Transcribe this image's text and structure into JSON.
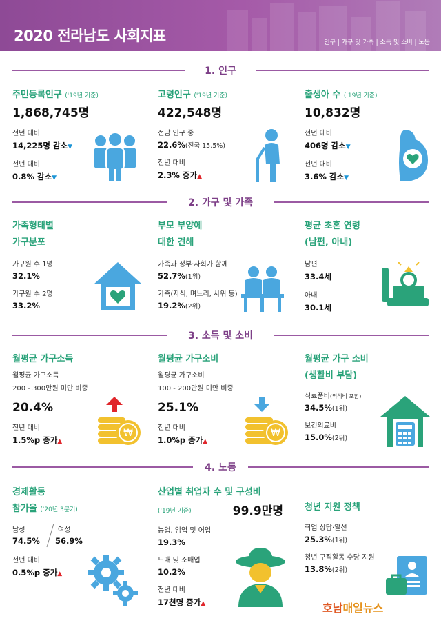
{
  "header": {
    "title": "2020 전라남도 사회지표",
    "nav": "인구 | 가구 및 가족 | 소득 및 소비 | 노동"
  },
  "sections": {
    "s1": "1. 인구",
    "s2": "2. 가구 및 가족",
    "s3": "3. 소득 및 소비",
    "s4": "4. 노동"
  },
  "population": {
    "resident": {
      "title": "주민등록인구",
      "note": "('19년 기준)",
      "value": "1,868,745명",
      "l1": "전년 대비",
      "v1": "14,225명 감소",
      "l2": "전년 대비",
      "v2": "0.8% 감소"
    },
    "elderly": {
      "title": "고령인구",
      "note": "('19년 기준)",
      "value": "422,548명",
      "l1": "전남 인구 중",
      "v1": "22.6%",
      "v1note": "(전국 15.5%)",
      "l2": "전년 대비",
      "v2": "2.3% 증가"
    },
    "births": {
      "title": "출생아 수",
      "note": "('19년 기준)",
      "value": "10,832명",
      "l1": "전년 대비",
      "v1": "406명 감소",
      "l2": "전년 대비",
      "v2": "3.6% 감소"
    }
  },
  "family": {
    "type": {
      "title1": "가족형태별",
      "title2": "가구분포",
      "l1": "가구원 수 1명",
      "v1": "32.1%",
      "l2": "가구원 수 2명",
      "v2": "33.2%"
    },
    "parents": {
      "title1": "부모 부양에",
      "title2": "대한 견해",
      "l1": "가족과 정부·사회가 함께",
      "v1": "52.7%",
      "v1note": "(1위)",
      "l2": "가족(자식, 며느리, 사위 등)",
      "v2": "19.2%",
      "v2note": "(2위)"
    },
    "marriage": {
      "title1": "평균 초혼 연령",
      "title2": "(남편, 아내)",
      "l1": "남편",
      "v1": "33.4세",
      "l2": "아내",
      "v2": "30.1세"
    }
  },
  "income": {
    "hh_income": {
      "title": "월평균 가구소득",
      "sub1": "월평균 가구소득",
      "sub2": "200 - 300만원 미만 비중",
      "value": "20.4%",
      "l1": "전년 대비",
      "v1": "1.5%p 증가"
    },
    "hh_spend": {
      "title": "월평균 가구소비",
      "sub1": "월평균 가구소비",
      "sub2": "100 - 200만원 미만 비중",
      "value": "25.1%",
      "l1": "전년 대비",
      "v1": "1.0%p 증가"
    },
    "living": {
      "title1": "월평균 가구 소비",
      "title2": "(생활비 부담)",
      "l1": "식료품비",
      "l1note": "(외식비 포함)",
      "v1": "34.5%",
      "v1note": "(1위)",
      "l2": "보건의료비",
      "v2": "15.0%",
      "v2note": "(2위)"
    }
  },
  "labor": {
    "econ": {
      "title1": "경제활동",
      "title2": "참가율",
      "note": "('20년 3분기)",
      "l_m": "남성",
      "v_m": "74.5%",
      "l_f": "여성",
      "v_f": "56.9%",
      "l1": "전년 대비",
      "v1": "0.5%p 증가"
    },
    "industry": {
      "title": "산업별 취업자 수 및 구성비",
      "note": "('19년 기준)",
      "value": "99.9만명",
      "l1": "농업, 임업 및 어업",
      "v1": "19.3%",
      "l2": "도매 및 소매업",
      "v2": "10.2%",
      "l3": "전년 대비",
      "v3": "17천명 증가"
    },
    "youth": {
      "title": "청년 지원 정책",
      "l1": "취업 상담·알선",
      "v1": "25.3%",
      "v1note": "(1위)",
      "l2": "청년 구직활동 수당 지원",
      "v2": "13.8%",
      "v2note": "(2위)"
    }
  },
  "arrows": {
    "down": "▼",
    "up": "▲"
  },
  "watermark": {
    "a": "호남",
    "b": "매일뉴스"
  },
  "colors": {
    "purple": "#9b5aa3",
    "green": "#2aa37a",
    "blue": "#4aa7df",
    "teal": "#3bbf9a",
    "gold": "#f2c12e",
    "red": "#e0262b"
  }
}
